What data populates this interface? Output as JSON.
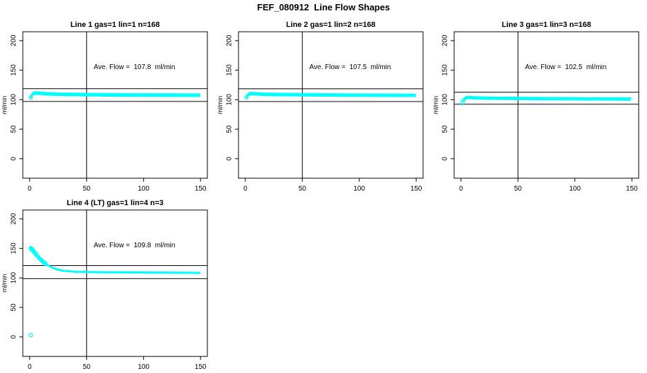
{
  "title": "FEF_080912  Line Flow Shapes",
  "colors": {
    "point_color": "#00FFFF",
    "line_color": "#000000",
    "background": "#FFFFFF"
  },
  "chart_data": [
    {
      "type": "scatter",
      "title": "Line 1 gas=1 lin=1 n=168",
      "annotation": "Ave. Flow =  107.8  ml/min",
      "ave_flow": 107.8,
      "n_traces": 168,
      "ylabel": "ml/min",
      "x_ticks": [
        0,
        50,
        100,
        150
      ],
      "y_ticks": [
        0,
        50,
        100,
        150,
        200
      ],
      "xlim": [
        -6,
        156
      ],
      "ylim": [
        -33,
        215
      ],
      "hlines": [
        97.0,
        118.6
      ],
      "vline": 50,
      "grid": [
        0,
        0
      ],
      "trace": {
        "x": [
          1,
          2,
          3,
          5,
          8,
          15,
          30,
          60,
          100,
          150
        ],
        "y": [
          104,
          108.5,
          110.5,
          111.5,
          111,
          110,
          109,
          108.3,
          107.8,
          107.5
        ]
      },
      "band_halfwidth": 2.2,
      "start_point": [
        1,
        103.5
      ],
      "outlier": null
    },
    {
      "type": "scatter",
      "title": "Line 2 gas=1 lin=2 n=168",
      "annotation": "Ave. Flow =  107.5  ml/min",
      "ave_flow": 107.5,
      "n_traces": 168,
      "ylabel": "ml/min",
      "x_ticks": [
        0,
        50,
        100,
        150
      ],
      "y_ticks": [
        0,
        50,
        100,
        150,
        200
      ],
      "xlim": [
        -6,
        156
      ],
      "ylim": [
        -33,
        215
      ],
      "hlines": [
        96.8,
        118.3
      ],
      "vline": 50,
      "grid": [
        0,
        1
      ],
      "trace": {
        "x": [
          1,
          2,
          4,
          8,
          15,
          30,
          60,
          100,
          150
        ],
        "y": [
          104.5,
          108,
          110.5,
          110,
          109.3,
          108.7,
          108.1,
          107.6,
          107.3
        ]
      },
      "band_halfwidth": 2.1,
      "start_point": [
        1,
        104
      ],
      "outlier": null
    },
    {
      "type": "scatter",
      "title": "Line 3 gas=1 lin=3 n=168",
      "annotation": "Ave. Flow =  102.5  ml/min",
      "ave_flow": 102.5,
      "n_traces": 168,
      "ylabel": "ml/min",
      "x_ticks": [
        0,
        50,
        100,
        150
      ],
      "y_ticks": [
        0,
        50,
        100,
        150,
        200
      ],
      "xlim": [
        -6,
        156
      ],
      "ylim": [
        -33,
        215
      ],
      "hlines": [
        92.3,
        112.8
      ],
      "vline": 50,
      "grid": [
        0,
        2
      ],
      "trace": {
        "x": [
          2,
          4,
          6,
          10,
          20,
          40,
          80,
          120,
          150
        ],
        "y": [
          99.5,
          103,
          104,
          103.2,
          102.7,
          102.2,
          101.7,
          101.3,
          101
        ]
      },
      "band_halfwidth": 2.0,
      "start_point": [
        2,
        98.8
      ],
      "outlier": [
        1,
        94
      ]
    },
    {
      "type": "scatter",
      "title": "Line 4 (LT) gas=1 lin=4 n=3",
      "annotation": "Ave. Flow =  109.8  ml/min",
      "ave_flow": 109.8,
      "n_traces": 3,
      "ylabel": "ml/min",
      "x_ticks": [
        0,
        50,
        100,
        150
      ],
      "y_ticks": [
        0,
        50,
        100,
        150,
        200
      ],
      "xlim": [
        -6,
        156
      ],
      "ylim": [
        -33,
        215
      ],
      "hlines": [
        98.8,
        120.8
      ],
      "vline": 50,
      "grid": [
        1,
        0
      ],
      "trace": {
        "x": [
          1,
          2,
          3,
          4,
          5,
          6,
          8,
          10,
          12,
          15,
          18,
          22,
          26,
          30,
          40,
          60,
          100,
          150
        ],
        "y": [
          150,
          148.5,
          146.5,
          144,
          141.5,
          139,
          134.5,
          130.5,
          127,
          122.5,
          119,
          115.8,
          113.5,
          112,
          110.4,
          109.6,
          109.1,
          108.6
        ]
      },
      "band_halfwidth": 1.1,
      "start_point": null,
      "outlier": [
        1,
        3
      ]
    }
  ]
}
